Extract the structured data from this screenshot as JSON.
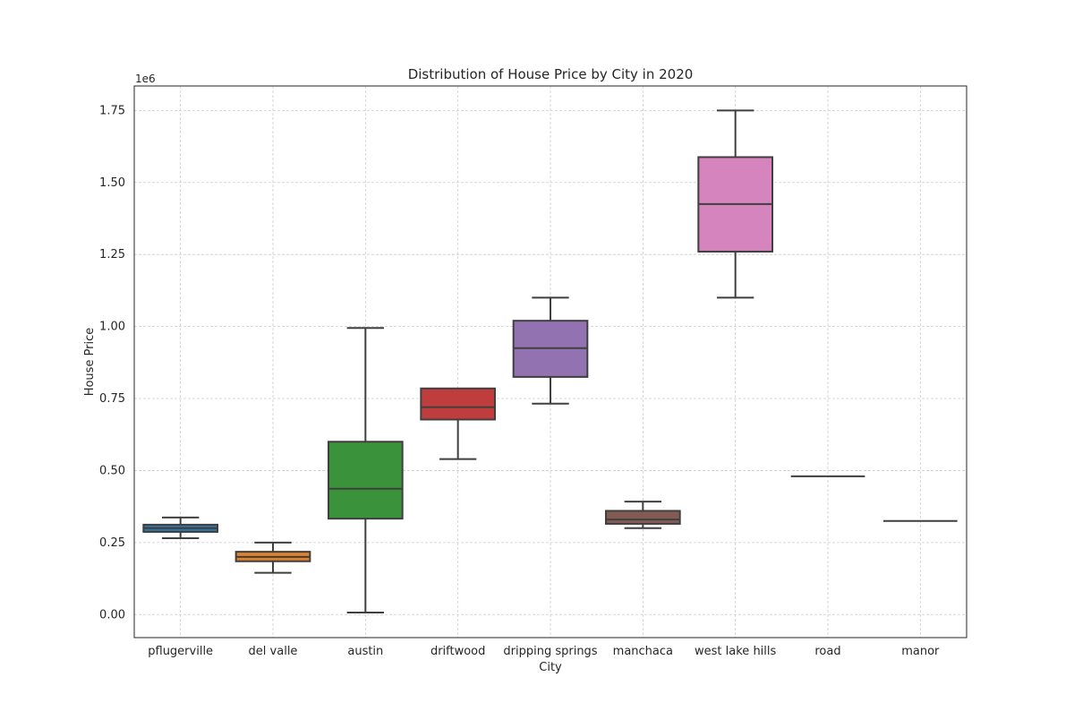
{
  "chart_data": {
    "type": "boxplot",
    "title": "Distribution of House Price by City in 2020",
    "xlabel": "City",
    "ylabel": "House Price",
    "y_offset_label": "1e6",
    "y_scale_factor": 1000000,
    "ylim": [
      -0.08,
      1.835
    ],
    "yticks": [
      0.0,
      0.25,
      0.5,
      0.75,
      1.0,
      1.25,
      1.5,
      1.75
    ],
    "ytick_labels": [
      "0.00",
      "0.25",
      "0.50",
      "0.75",
      "1.00",
      "1.25",
      "1.50",
      "1.75"
    ],
    "grid": true,
    "legend": "none",
    "categories": [
      "pflugerville",
      "del valle",
      "austin",
      "driftwood",
      "dripping springs",
      "manchaca",
      "west lake hills",
      "road",
      "manor"
    ],
    "boxes": [
      {
        "category": "pflugerville",
        "whisker_low": 0.265,
        "q1": 0.287,
        "median": 0.3,
        "q3": 0.312,
        "whisker_high": 0.337,
        "color": "#3274a1"
      },
      {
        "category": "del valle",
        "whisker_low": 0.145,
        "q1": 0.185,
        "median": 0.2,
        "q3": 0.218,
        "whisker_high": 0.25,
        "color": "#e1812c"
      },
      {
        "category": "austin",
        "whisker_low": 0.007,
        "q1": 0.333,
        "median": 0.437,
        "q3": 0.6,
        "whisker_high": 0.995,
        "color": "#3a923a"
      },
      {
        "category": "driftwood",
        "whisker_low": 0.54,
        "q1": 0.677,
        "median": 0.72,
        "q3": 0.785,
        "whisker_high": 0.785,
        "color": "#c03d3e"
      },
      {
        "category": "dripping springs",
        "whisker_low": 0.732,
        "q1": 0.825,
        "median": 0.925,
        "q3": 1.02,
        "whisker_high": 1.1,
        "color": "#9372b2"
      },
      {
        "category": "manchaca",
        "whisker_low": 0.3,
        "q1": 0.315,
        "median": 0.33,
        "q3": 0.36,
        "whisker_high": 0.392,
        "color": "#845b53"
      },
      {
        "category": "west lake hills",
        "whisker_low": 1.1,
        "q1": 1.26,
        "median": 1.425,
        "q3": 1.588,
        "whisker_high": 1.75,
        "color": "#d684bd"
      },
      {
        "category": "road",
        "whisker_low": 0.48,
        "q1": 0.48,
        "median": 0.48,
        "q3": 0.48,
        "whisker_high": 0.48,
        "color": "#7f7f7f"
      },
      {
        "category": "manor",
        "whisker_low": 0.325,
        "q1": 0.325,
        "median": 0.325,
        "q3": 0.325,
        "whisker_high": 0.325,
        "color": "#a9aa35"
      }
    ],
    "colors": {
      "grid": "#cccccc",
      "axes_edge": "#262626",
      "box_edge": "#3f3f3f",
      "text": "#262626",
      "background": "#ffffff"
    }
  }
}
